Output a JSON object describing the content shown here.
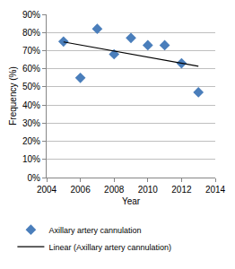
{
  "chart_data": {
    "type": "scatter",
    "x_label": "Year",
    "y_label": "Frequency (%)",
    "series": [
      {
        "name": "Axillary artery cannulation",
        "type": "scatter",
        "marker": "diamond",
        "color": "#4a7ebb",
        "x": [
          2005,
          2006,
          2007,
          2008,
          2009,
          2010,
          2011,
          2012,
          2013
        ],
        "values": [
          75,
          55,
          82,
          68,
          77,
          73,
          73,
          63,
          47
        ]
      },
      {
        "name": "Linear (Axillary artery cannulation)",
        "type": "line",
        "line_style": "solid",
        "color": "#000000",
        "x": [
          2005,
          2013
        ],
        "values": [
          74.8,
          61.4
        ]
      }
    ],
    "xlim": [
      2004,
      2014
    ],
    "xticks": [
      2004,
      2006,
      2008,
      2010,
      2012,
      2014
    ],
    "ylim": [
      0,
      90
    ],
    "yticks": [
      {
        "value": 0,
        "label": "0%"
      },
      {
        "value": 10,
        "label": "10%"
      },
      {
        "value": 20,
        "label": "20%"
      },
      {
        "value": 30,
        "label": "30%"
      },
      {
        "value": 40,
        "label": "40%"
      },
      {
        "value": 50,
        "label": "50%"
      },
      {
        "value": 60,
        "label": "60%"
      },
      {
        "value": 70,
        "label": "70%"
      },
      {
        "value": 80,
        "label": "80%"
      },
      {
        "value": 90,
        "label": "90%"
      }
    ],
    "grid": true,
    "legend": "bottom"
  }
}
